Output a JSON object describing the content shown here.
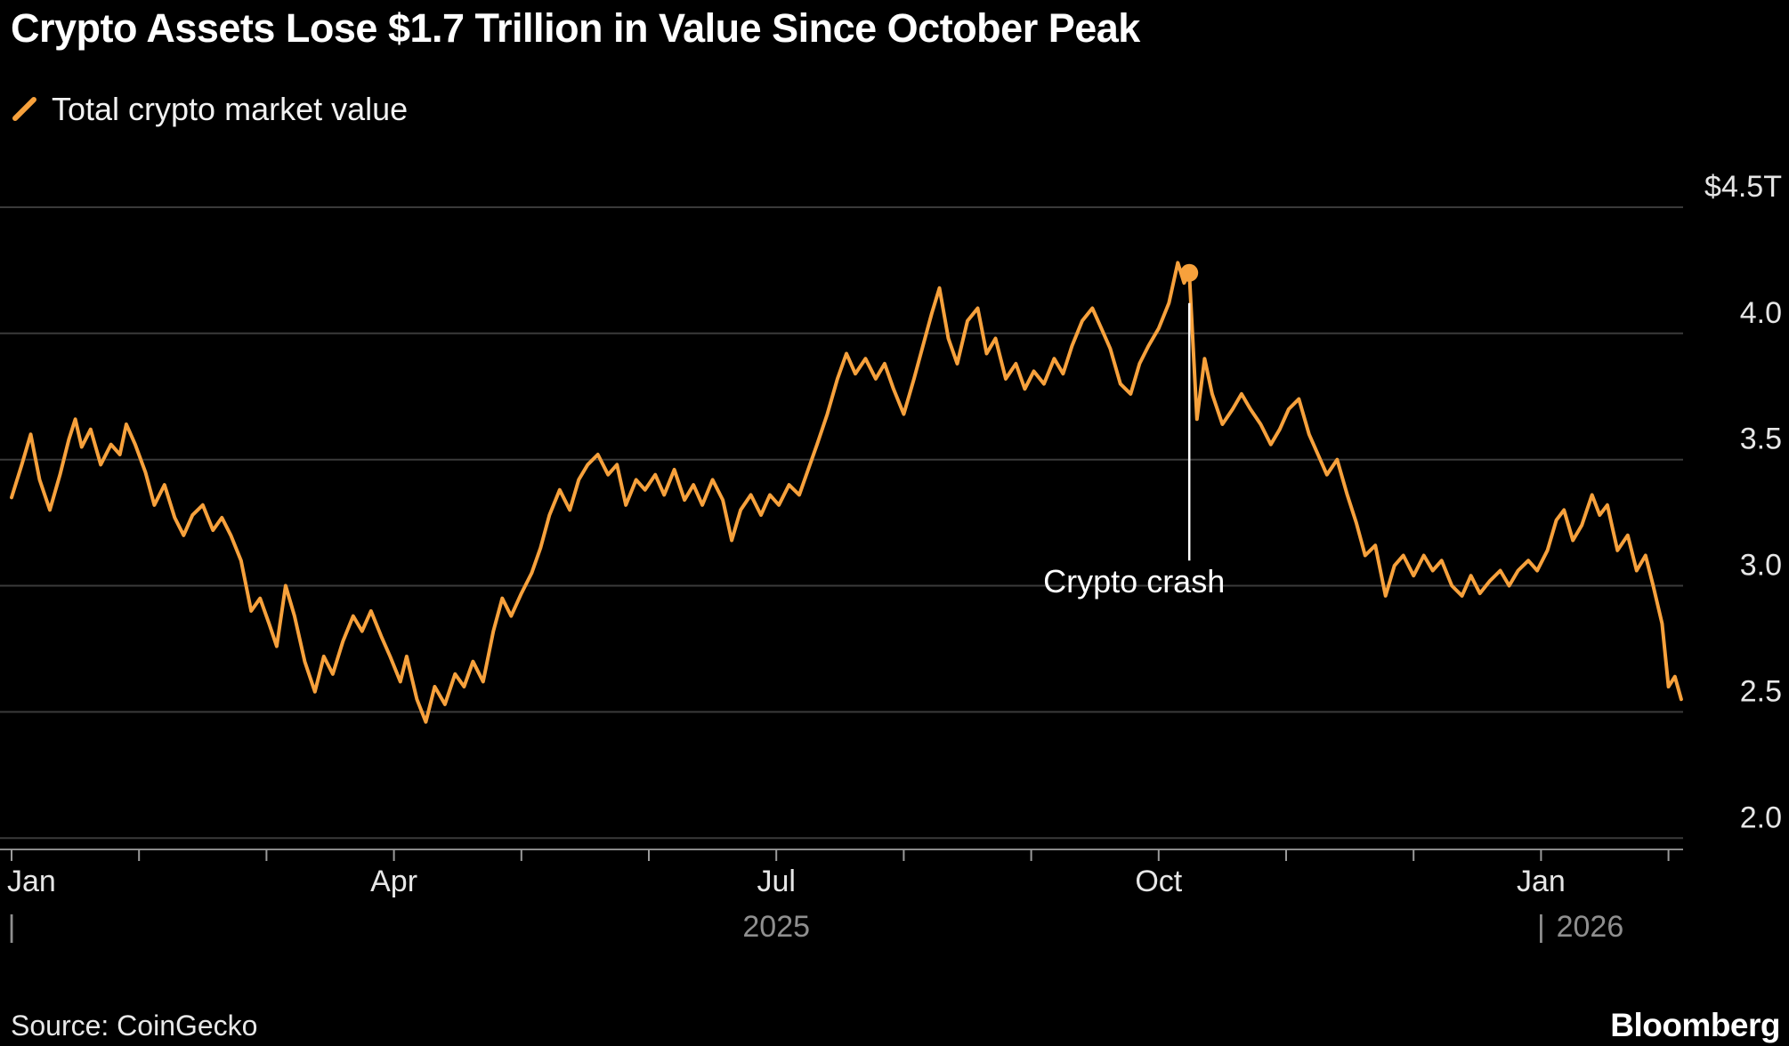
{
  "title": "Crypto Assets Lose $1.7 Trillion in Value Since October Peak",
  "legend": {
    "label": "Total crypto market value"
  },
  "source": "Source: CoinGecko",
  "brand": "Bloomberg",
  "colors": {
    "background": "#000000",
    "line": "#F7A13C",
    "grid": "#3a3a3a",
    "axis_line": "#8a8a8a",
    "tick": "#9a9a9a",
    "axis_text": "#e6e6e6",
    "muted_text": "#8f8f8f",
    "annotation": "#ffffff"
  },
  "chart_data": {
    "type": "line",
    "title": "Crypto Assets Lose $1.7 Trillion in Value Since October Peak",
    "xlabel": "",
    "ylabel": "Total crypto market value ($T)",
    "x_unit": "months since 2025-01-01",
    "xlim": [
      0,
      13.2
    ],
    "ylim": [
      1.85,
      4.65
    ],
    "grid": "horizontal",
    "legend_position": "top-left",
    "y_ticks": [
      {
        "v": 4.5,
        "label": "$4.5T"
      },
      {
        "v": 4.0,
        "label": "4.0"
      },
      {
        "v": 3.5,
        "label": "3.5"
      },
      {
        "v": 3.0,
        "label": "3.0"
      },
      {
        "v": 2.5,
        "label": "2.5"
      },
      {
        "v": 2.0,
        "label": "2.0"
      }
    ],
    "x_ticks": [
      {
        "t": 0,
        "label": "Jan"
      },
      {
        "t": 3,
        "label": "Apr"
      },
      {
        "t": 6,
        "label": "Jul"
      },
      {
        "t": 9,
        "label": "Oct"
      },
      {
        "t": 12,
        "label": "Jan"
      }
    ],
    "minor_tick_months": [
      0,
      1,
      2,
      3,
      4,
      5,
      6,
      7,
      8,
      9,
      10,
      11,
      12,
      13
    ],
    "year_labels": [
      {
        "bar_t": 0,
        "text": "2025",
        "text_t": 6.0,
        "anchor": "middle"
      },
      {
        "bar_t": 12,
        "text": "2026",
        "text_t": 12.12,
        "anchor": "start"
      }
    ],
    "annotation": {
      "label": "Crypto crash",
      "t": 9.24,
      "dot_value": 4.24,
      "line_from": 4.12,
      "line_to": 3.1
    },
    "series": [
      {
        "name": "Total crypto market value",
        "points": [
          [
            0,
            3.35
          ],
          [
            0.08,
            3.48
          ],
          [
            0.15,
            3.6
          ],
          [
            0.22,
            3.42
          ],
          [
            0.3,
            3.3
          ],
          [
            0.38,
            3.44
          ],
          [
            0.45,
            3.58
          ],
          [
            0.5,
            3.66
          ],
          [
            0.55,
            3.55
          ],
          [
            0.62,
            3.62
          ],
          [
            0.7,
            3.48
          ],
          [
            0.78,
            3.56
          ],
          [
            0.85,
            3.52
          ],
          [
            0.9,
            3.64
          ],
          [
            0.97,
            3.56
          ],
          [
            1.05,
            3.45
          ],
          [
            1.12,
            3.32
          ],
          [
            1.2,
            3.4
          ],
          [
            1.28,
            3.27
          ],
          [
            1.35,
            3.2
          ],
          [
            1.42,
            3.28
          ],
          [
            1.5,
            3.32
          ],
          [
            1.58,
            3.22
          ],
          [
            1.65,
            3.27
          ],
          [
            1.72,
            3.2
          ],
          [
            1.8,
            3.1
          ],
          [
            1.88,
            2.9
          ],
          [
            1.95,
            2.95
          ],
          [
            2.02,
            2.85
          ],
          [
            2.08,
            2.76
          ],
          [
            2.15,
            3.0
          ],
          [
            2.22,
            2.88
          ],
          [
            2.3,
            2.7
          ],
          [
            2.38,
            2.58
          ],
          [
            2.45,
            2.72
          ],
          [
            2.52,
            2.65
          ],
          [
            2.6,
            2.78
          ],
          [
            2.68,
            2.88
          ],
          [
            2.75,
            2.82
          ],
          [
            2.82,
            2.9
          ],
          [
            2.9,
            2.8
          ],
          [
            2.97,
            2.72
          ],
          [
            3.05,
            2.62
          ],
          [
            3.1,
            2.72
          ],
          [
            3.18,
            2.55
          ],
          [
            3.25,
            2.46
          ],
          [
            3.32,
            2.6
          ],
          [
            3.4,
            2.53
          ],
          [
            3.48,
            2.65
          ],
          [
            3.55,
            2.6
          ],
          [
            3.62,
            2.7
          ],
          [
            3.7,
            2.62
          ],
          [
            3.78,
            2.82
          ],
          [
            3.85,
            2.95
          ],
          [
            3.92,
            2.88
          ],
          [
            4.0,
            2.97
          ],
          [
            4.08,
            3.05
          ],
          [
            4.15,
            3.15
          ],
          [
            4.22,
            3.28
          ],
          [
            4.3,
            3.38
          ],
          [
            4.38,
            3.3
          ],
          [
            4.45,
            3.42
          ],
          [
            4.52,
            3.48
          ],
          [
            4.6,
            3.52
          ],
          [
            4.68,
            3.44
          ],
          [
            4.75,
            3.48
          ],
          [
            4.82,
            3.32
          ],
          [
            4.9,
            3.42
          ],
          [
            4.97,
            3.38
          ],
          [
            5.05,
            3.44
          ],
          [
            5.12,
            3.36
          ],
          [
            5.2,
            3.46
          ],
          [
            5.28,
            3.34
          ],
          [
            5.35,
            3.4
          ],
          [
            5.42,
            3.32
          ],
          [
            5.5,
            3.42
          ],
          [
            5.58,
            3.34
          ],
          [
            5.65,
            3.18
          ],
          [
            5.72,
            3.3
          ],
          [
            5.8,
            3.36
          ],
          [
            5.88,
            3.28
          ],
          [
            5.95,
            3.36
          ],
          [
            6.02,
            3.32
          ],
          [
            6.1,
            3.4
          ],
          [
            6.18,
            3.36
          ],
          [
            6.25,
            3.46
          ],
          [
            6.32,
            3.56
          ],
          [
            6.4,
            3.68
          ],
          [
            6.48,
            3.82
          ],
          [
            6.55,
            3.92
          ],
          [
            6.62,
            3.84
          ],
          [
            6.7,
            3.9
          ],
          [
            6.78,
            3.82
          ],
          [
            6.85,
            3.88
          ],
          [
            6.92,
            3.78
          ],
          [
            7.0,
            3.68
          ],
          [
            7.08,
            3.82
          ],
          [
            7.15,
            3.95
          ],
          [
            7.22,
            4.08
          ],
          [
            7.28,
            4.18
          ],
          [
            7.35,
            3.98
          ],
          [
            7.42,
            3.88
          ],
          [
            7.5,
            4.05
          ],
          [
            7.58,
            4.1
          ],
          [
            7.65,
            3.92
          ],
          [
            7.72,
            3.98
          ],
          [
            7.8,
            3.82
          ],
          [
            7.88,
            3.88
          ],
          [
            7.95,
            3.78
          ],
          [
            8.02,
            3.85
          ],
          [
            8.1,
            3.8
          ],
          [
            8.18,
            3.9
          ],
          [
            8.25,
            3.84
          ],
          [
            8.32,
            3.95
          ],
          [
            8.4,
            4.05
          ],
          [
            8.48,
            4.1
          ],
          [
            8.55,
            4.02
          ],
          [
            8.62,
            3.94
          ],
          [
            8.7,
            3.8
          ],
          [
            8.78,
            3.76
          ],
          [
            8.85,
            3.88
          ],
          [
            8.92,
            3.95
          ],
          [
            9.0,
            4.02
          ],
          [
            9.08,
            4.12
          ],
          [
            9.15,
            4.28
          ],
          [
            9.2,
            4.2
          ],
          [
            9.24,
            4.24
          ],
          [
            9.3,
            3.66
          ],
          [
            9.36,
            3.9
          ],
          [
            9.42,
            3.76
          ],
          [
            9.5,
            3.64
          ],
          [
            9.58,
            3.7
          ],
          [
            9.65,
            3.76
          ],
          [
            9.72,
            3.7
          ],
          [
            9.8,
            3.64
          ],
          [
            9.88,
            3.56
          ],
          [
            9.95,
            3.62
          ],
          [
            10.02,
            3.7
          ],
          [
            10.1,
            3.74
          ],
          [
            10.18,
            3.6
          ],
          [
            10.25,
            3.52
          ],
          [
            10.32,
            3.44
          ],
          [
            10.4,
            3.5
          ],
          [
            10.48,
            3.36
          ],
          [
            10.55,
            3.25
          ],
          [
            10.62,
            3.12
          ],
          [
            10.7,
            3.16
          ],
          [
            10.78,
            2.96
          ],
          [
            10.85,
            3.08
          ],
          [
            10.92,
            3.12
          ],
          [
            11.0,
            3.04
          ],
          [
            11.08,
            3.12
          ],
          [
            11.15,
            3.06
          ],
          [
            11.22,
            3.1
          ],
          [
            11.3,
            3.0
          ],
          [
            11.38,
            2.96
          ],
          [
            11.45,
            3.04
          ],
          [
            11.52,
            2.97
          ],
          [
            11.6,
            3.02
          ],
          [
            11.68,
            3.06
          ],
          [
            11.75,
            3.0
          ],
          [
            11.82,
            3.06
          ],
          [
            11.9,
            3.1
          ],
          [
            11.97,
            3.06
          ],
          [
            12.05,
            3.14
          ],
          [
            12.12,
            3.26
          ],
          [
            12.18,
            3.3
          ],
          [
            12.25,
            3.18
          ],
          [
            12.32,
            3.24
          ],
          [
            12.4,
            3.36
          ],
          [
            12.46,
            3.28
          ],
          [
            12.52,
            3.32
          ],
          [
            12.6,
            3.14
          ],
          [
            12.68,
            3.2
          ],
          [
            12.75,
            3.06
          ],
          [
            12.82,
            3.12
          ],
          [
            12.88,
            3.0
          ],
          [
            12.95,
            2.85
          ],
          [
            13.0,
            2.6
          ],
          [
            13.05,
            2.64
          ],
          [
            13.1,
            2.55
          ]
        ]
      }
    ]
  }
}
